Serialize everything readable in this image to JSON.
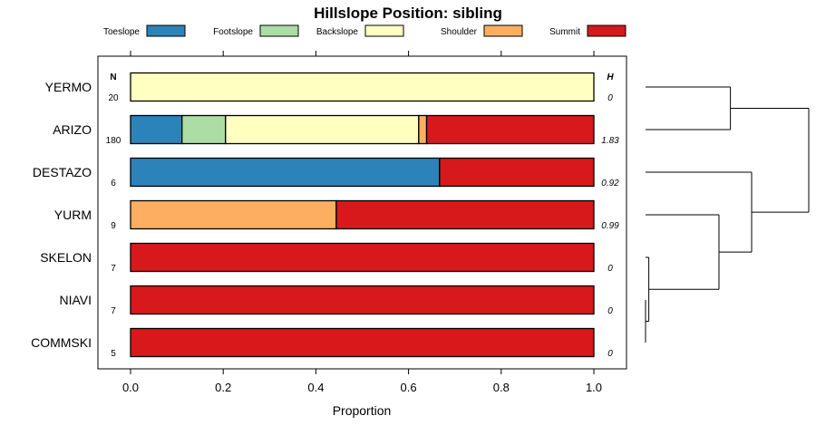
{
  "chart_data": {
    "type": "bar",
    "orientation": "horizontal",
    "stacked": true,
    "title": "Hillslope Position: sibling",
    "xlabel": "Proportion",
    "ylabel": "",
    "xlim": [
      0,
      1
    ],
    "xticks": [
      0.0,
      0.2,
      0.4,
      0.6,
      0.8,
      1.0
    ],
    "xtick_labels": [
      "0.0",
      "0.2",
      "0.4",
      "0.6",
      "0.8",
      "1.0"
    ],
    "n_header": "N",
    "h_header": "H",
    "legend": [
      {
        "name": "Toeslope",
        "color": "#2b83ba"
      },
      {
        "name": "Footslope",
        "color": "#abdda4"
      },
      {
        "name": "Backslope",
        "color": "#ffffbf"
      },
      {
        "name": "Shoulder",
        "color": "#fdae61"
      },
      {
        "name": "Summit",
        "color": "#d7191c"
      }
    ],
    "rows": [
      {
        "label": "YERMO",
        "n": "20",
        "h": "0",
        "values": [
          0,
          0,
          1.0,
          0,
          0
        ]
      },
      {
        "label": "ARIZO",
        "n": "180",
        "h": "1.83",
        "values": [
          0.111,
          0.094,
          0.417,
          0.017,
          0.361
        ]
      },
      {
        "label": "DESTAZO",
        "n": "6",
        "h": "0.92",
        "values": [
          0.667,
          0,
          0,
          0,
          0.333
        ]
      },
      {
        "label": "YURM",
        "n": "9",
        "h": "0.99",
        "values": [
          0,
          0,
          0,
          0.444,
          0.556
        ]
      },
      {
        "label": "SKELON",
        "n": "7",
        "h": "0",
        "values": [
          0,
          0,
          0,
          0,
          1.0
        ]
      },
      {
        "label": "NIAVI",
        "n": "7",
        "h": "0",
        "values": [
          0,
          0,
          0,
          0,
          1.0
        ]
      },
      {
        "label": "COMMSKI",
        "n": "5",
        "h": "0",
        "values": [
          0,
          0,
          0,
          0,
          1.0
        ]
      }
    ],
    "dendrogram": {
      "leaves": [
        "YERMO",
        "ARIZO",
        "DESTAZO",
        "YURM",
        "SKELON",
        "NIAVI",
        "COMMSKI"
      ],
      "merges": [
        {
          "a": "leaf:5",
          "b": "leaf:6",
          "height": 0.0
        },
        {
          "a": "leaf:4",
          "b": "node:0",
          "height": 0.02
        },
        {
          "a": "leaf:3",
          "b": "node:1",
          "height": 0.45
        },
        {
          "a": "leaf:0",
          "b": "leaf:1",
          "height": 0.52
        },
        {
          "a": "leaf:2",
          "b": "node:2",
          "height": 0.65
        },
        {
          "a": "node:3",
          "b": "node:4",
          "height": 1.0
        }
      ]
    }
  }
}
